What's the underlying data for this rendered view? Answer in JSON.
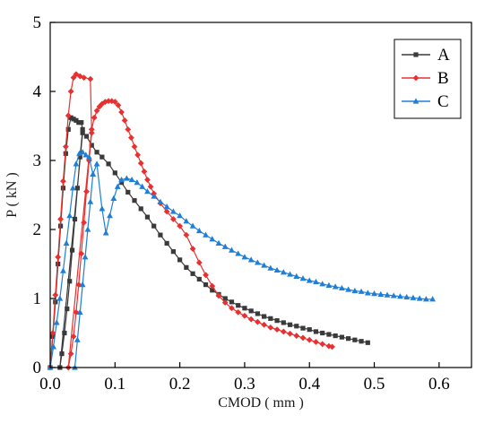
{
  "chart_data": {
    "type": "line",
    "xlabel": "CMOD ( mm )",
    "ylabel": "P ( kN )",
    "xlim": [
      0.0,
      0.65
    ],
    "ylim": [
      0,
      5
    ],
    "xticks": [
      0.0,
      0.1,
      0.2,
      0.3,
      0.4,
      0.5,
      0.6
    ],
    "xtick_labels": [
      "0.0",
      "0.1",
      "0.2",
      "0.3",
      "0.4",
      "0.5",
      "0.6"
    ],
    "yticks": [
      0,
      1,
      2,
      3,
      4,
      5
    ],
    "ytick_labels": [
      "0",
      "1",
      "2",
      "3",
      "4",
      "5"
    ],
    "grid": false,
    "legend_position": "top-right",
    "series": [
      {
        "name": "A",
        "color": "#3a3a3a",
        "marker": "square",
        "points": [
          [
            0.0,
            0.0
          ],
          [
            0.004,
            0.45
          ],
          [
            0.008,
            0.95
          ],
          [
            0.012,
            1.5
          ],
          [
            0.016,
            2.05
          ],
          [
            0.02,
            2.6
          ],
          [
            0.024,
            3.1
          ],
          [
            0.028,
            3.45
          ],
          [
            0.032,
            3.62
          ],
          [
            0.036,
            3.6
          ],
          [
            0.04,
            3.58
          ],
          [
            0.044,
            3.55
          ],
          [
            0.048,
            3.55
          ],
          [
            0.05,
            3.45
          ],
          [
            0.046,
            3.05
          ],
          [
            0.042,
            2.6
          ],
          [
            0.038,
            2.15
          ],
          [
            0.034,
            1.7
          ],
          [
            0.03,
            1.25
          ],
          [
            0.026,
            0.85
          ],
          [
            0.022,
            0.5
          ],
          [
            0.018,
            0.2
          ],
          [
            0.015,
            0.0
          ],
          [
            0.05,
            3.4
          ],
          [
            0.056,
            3.35
          ],
          [
            0.064,
            3.22
          ],
          [
            0.072,
            3.12
          ],
          [
            0.08,
            3.05
          ],
          [
            0.09,
            2.95
          ],
          [
            0.1,
            2.82
          ],
          [
            0.11,
            2.68
          ],
          [
            0.12,
            2.54
          ],
          [
            0.13,
            2.42
          ],
          [
            0.14,
            2.3
          ],
          [
            0.15,
            2.18
          ],
          [
            0.16,
            2.05
          ],
          [
            0.17,
            1.92
          ],
          [
            0.18,
            1.8
          ],
          [
            0.19,
            1.68
          ],
          [
            0.2,
            1.56
          ],
          [
            0.21,
            1.45
          ],
          [
            0.22,
            1.36
          ],
          [
            0.23,
            1.28
          ],
          [
            0.24,
            1.2
          ],
          [
            0.25,
            1.12
          ],
          [
            0.26,
            1.06
          ],
          [
            0.27,
            1.0
          ],
          [
            0.28,
            0.95
          ],
          [
            0.29,
            0.9
          ],
          [
            0.3,
            0.86
          ],
          [
            0.31,
            0.82
          ],
          [
            0.32,
            0.78
          ],
          [
            0.33,
            0.74
          ],
          [
            0.34,
            0.71
          ],
          [
            0.35,
            0.68
          ],
          [
            0.36,
            0.65
          ],
          [
            0.37,
            0.62
          ],
          [
            0.38,
            0.6
          ],
          [
            0.39,
            0.57
          ],
          [
            0.4,
            0.55
          ],
          [
            0.41,
            0.52
          ],
          [
            0.42,
            0.5
          ],
          [
            0.43,
            0.48
          ],
          [
            0.44,
            0.46
          ],
          [
            0.45,
            0.44
          ],
          [
            0.46,
            0.42
          ],
          [
            0.47,
            0.4
          ],
          [
            0.48,
            0.38
          ],
          [
            0.49,
            0.36
          ]
        ]
      },
      {
        "name": "B",
        "color": "#e83030",
        "marker": "diamond",
        "points": [
          [
            0.0,
            0.0
          ],
          [
            0.004,
            0.5
          ],
          [
            0.008,
            1.05
          ],
          [
            0.012,
            1.6
          ],
          [
            0.016,
            2.15
          ],
          [
            0.02,
            2.7
          ],
          [
            0.024,
            3.2
          ],
          [
            0.028,
            3.65
          ],
          [
            0.032,
            4.0
          ],
          [
            0.036,
            4.2
          ],
          [
            0.04,
            4.25
          ],
          [
            0.046,
            4.22
          ],
          [
            0.052,
            4.2
          ],
          [
            0.062,
            4.18
          ],
          [
            0.064,
            3.4
          ],
          [
            0.06,
            3.0
          ],
          [
            0.056,
            2.55
          ],
          [
            0.052,
            2.1
          ],
          [
            0.048,
            1.65
          ],
          [
            0.044,
            1.2
          ],
          [
            0.04,
            0.8
          ],
          [
            0.036,
            0.45
          ],
          [
            0.032,
            0.2
          ],
          [
            0.028,
            0.0
          ],
          [
            0.064,
            3.45
          ],
          [
            0.068,
            3.62
          ],
          [
            0.072,
            3.72
          ],
          [
            0.076,
            3.78
          ],
          [
            0.08,
            3.82
          ],
          [
            0.085,
            3.85
          ],
          [
            0.09,
            3.86
          ],
          [
            0.095,
            3.86
          ],
          [
            0.1,
            3.85
          ],
          [
            0.105,
            3.8
          ],
          [
            0.11,
            3.7
          ],
          [
            0.115,
            3.58
          ],
          [
            0.12,
            3.45
          ],
          [
            0.125,
            3.33
          ],
          [
            0.13,
            3.2
          ],
          [
            0.135,
            3.08
          ],
          [
            0.14,
            2.96
          ],
          [
            0.145,
            2.84
          ],
          [
            0.15,
            2.72
          ],
          [
            0.155,
            2.62
          ],
          [
            0.16,
            2.52
          ],
          [
            0.17,
            2.38
          ],
          [
            0.18,
            2.26
          ],
          [
            0.19,
            2.15
          ],
          [
            0.2,
            2.05
          ],
          [
            0.21,
            1.92
          ],
          [
            0.22,
            1.72
          ],
          [
            0.23,
            1.52
          ],
          [
            0.24,
            1.34
          ],
          [
            0.25,
            1.18
          ],
          [
            0.26,
            1.04
          ],
          [
            0.27,
            0.94
          ],
          [
            0.28,
            0.86
          ],
          [
            0.29,
            0.8
          ],
          [
            0.3,
            0.75
          ],
          [
            0.31,
            0.7
          ],
          [
            0.32,
            0.66
          ],
          [
            0.33,
            0.62
          ],
          [
            0.34,
            0.58
          ],
          [
            0.35,
            0.55
          ],
          [
            0.36,
            0.52
          ],
          [
            0.37,
            0.49
          ],
          [
            0.38,
            0.46
          ],
          [
            0.39,
            0.43
          ],
          [
            0.4,
            0.4
          ],
          [
            0.41,
            0.37
          ],
          [
            0.42,
            0.34
          ],
          [
            0.43,
            0.31
          ],
          [
            0.435,
            0.3
          ]
        ]
      },
      {
        "name": "C",
        "color": "#1f7fd6",
        "marker": "triangle",
        "points": [
          [
            0.0,
            0.0
          ],
          [
            0.005,
            0.3
          ],
          [
            0.01,
            0.65
          ],
          [
            0.015,
            1.0
          ],
          [
            0.02,
            1.4
          ],
          [
            0.025,
            1.8
          ],
          [
            0.03,
            2.2
          ],
          [
            0.035,
            2.6
          ],
          [
            0.04,
            2.95
          ],
          [
            0.045,
            3.1
          ],
          [
            0.05,
            3.12
          ],
          [
            0.055,
            3.08
          ],
          [
            0.06,
            3.05
          ],
          [
            0.066,
            2.8
          ],
          [
            0.062,
            2.4
          ],
          [
            0.058,
            2.0
          ],
          [
            0.054,
            1.6
          ],
          [
            0.05,
            1.2
          ],
          [
            0.046,
            0.8
          ],
          [
            0.042,
            0.4
          ],
          [
            0.038,
            0.0
          ],
          [
            0.066,
            2.8
          ],
          [
            0.072,
            2.95
          ],
          [
            0.08,
            2.3
          ],
          [
            0.086,
            1.95
          ],
          [
            0.092,
            2.2
          ],
          [
            0.098,
            2.45
          ],
          [
            0.104,
            2.62
          ],
          [
            0.11,
            2.72
          ],
          [
            0.118,
            2.74
          ],
          [
            0.126,
            2.72
          ],
          [
            0.134,
            2.68
          ],
          [
            0.142,
            2.62
          ],
          [
            0.15,
            2.55
          ],
          [
            0.16,
            2.48
          ],
          [
            0.17,
            2.4
          ],
          [
            0.18,
            2.33
          ],
          [
            0.19,
            2.26
          ],
          [
            0.2,
            2.2
          ],
          [
            0.21,
            2.12
          ],
          [
            0.22,
            2.05
          ],
          [
            0.23,
            1.98
          ],
          [
            0.24,
            1.92
          ],
          [
            0.25,
            1.86
          ],
          [
            0.26,
            1.8
          ],
          [
            0.27,
            1.75
          ],
          [
            0.28,
            1.7
          ],
          [
            0.29,
            1.65
          ],
          [
            0.3,
            1.6
          ],
          [
            0.31,
            1.56
          ],
          [
            0.32,
            1.52
          ],
          [
            0.33,
            1.48
          ],
          [
            0.34,
            1.44
          ],
          [
            0.35,
            1.41
          ],
          [
            0.36,
            1.38
          ],
          [
            0.37,
            1.35
          ],
          [
            0.38,
            1.32
          ],
          [
            0.39,
            1.29
          ],
          [
            0.4,
            1.26
          ],
          [
            0.41,
            1.24
          ],
          [
            0.42,
            1.21
          ],
          [
            0.43,
            1.19
          ],
          [
            0.44,
            1.17
          ],
          [
            0.45,
            1.15
          ],
          [
            0.46,
            1.13
          ],
          [
            0.47,
            1.11
          ],
          [
            0.48,
            1.1
          ],
          [
            0.49,
            1.08
          ],
          [
            0.5,
            1.07
          ],
          [
            0.51,
            1.06
          ],
          [
            0.52,
            1.05
          ],
          [
            0.53,
            1.04
          ],
          [
            0.54,
            1.03
          ],
          [
            0.55,
            1.02
          ],
          [
            0.56,
            1.01
          ],
          [
            0.57,
            1.0
          ],
          [
            0.58,
            0.99
          ],
          [
            0.59,
            0.99
          ]
        ]
      }
    ]
  }
}
